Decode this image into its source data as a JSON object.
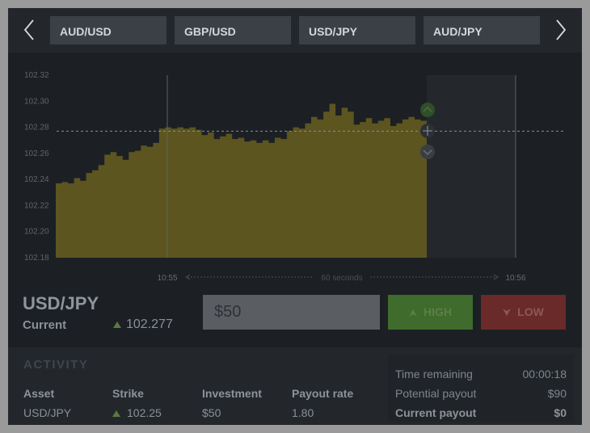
{
  "asset_tabs": [
    "AUD/USD",
    "GBP/USD",
    "USD/JPY",
    "AUD/JPY"
  ],
  "nav": {
    "prev_icon": "chevron-left-icon",
    "next_icon": "chevron-right-icon"
  },
  "chart_data": {
    "type": "area",
    "y_ticks": [
      "102.32",
      "102.30",
      "102.28",
      "102.26",
      "102.24",
      "102.22",
      "102.20",
      "102.18"
    ],
    "ylim": [
      102.18,
      102.32
    ],
    "x_ticks": [
      "10:55",
      "10:56"
    ],
    "duration_label": "60 seconds",
    "strike": 102.277,
    "fill_color": "#5c5520",
    "series": [
      102.237,
      102.238,
      102.237,
      102.241,
      102.239,
      102.245,
      102.247,
      102.251,
      102.259,
      102.261,
      102.258,
      102.255,
      102.261,
      102.262,
      102.266,
      102.265,
      102.268,
      102.279,
      102.28,
      102.279,
      102.28,
      102.279,
      102.28,
      102.278,
      102.274,
      102.276,
      102.271,
      102.273,
      102.275,
      102.271,
      102.272,
      102.269,
      102.27,
      102.268,
      102.27,
      102.268,
      102.272,
      102.271,
      102.277,
      102.28,
      102.279,
      102.283,
      102.288,
      102.286,
      102.292,
      102.298,
      102.289,
      102.295,
      102.292,
      102.282,
      102.284,
      102.287,
      102.283,
      102.285,
      102.287,
      102.281,
      102.283,
      102.286,
      102.288,
      102.286,
      102.285,
      102.287
    ]
  },
  "info": {
    "pair": "USD/JPY",
    "current_label": "Current",
    "current_value": "102.277"
  },
  "trade": {
    "amount": "$50",
    "high_label": "HIGH",
    "low_label": "LOW",
    "high_color": "#3f6b2c",
    "low_color": "#6a2a2a"
  },
  "activity": {
    "title": "ACTIVITY",
    "headers": {
      "asset": "Asset",
      "strike": "Strike",
      "investment": "Investment",
      "payout_rate": "Payout rate"
    },
    "row": {
      "asset": "USD/JPY",
      "strike": "102.25",
      "investment": "$50",
      "payout_rate": "1.80"
    }
  },
  "summary": {
    "time_remaining_label": "Time remaining",
    "time_remaining": "00:00:18",
    "potential_payout_label": "Potential payout",
    "potential_payout": "$90",
    "current_payout_label": "Current payout",
    "current_payout": "$0"
  }
}
